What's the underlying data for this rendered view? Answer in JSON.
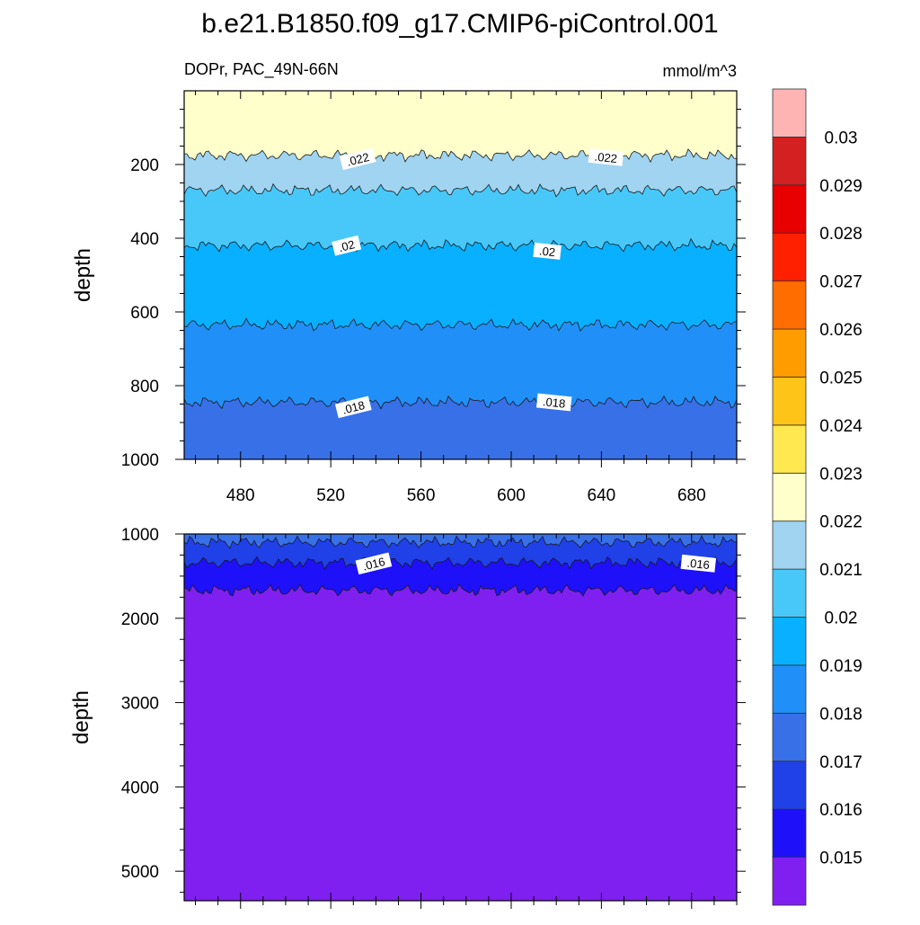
{
  "chart_data": {
    "type": "contour",
    "title": "b.e21.B1850.f09_g17.CMIP6-piControl.001",
    "left_subtitle": "DOPr, PAC_49N-66N",
    "right_subtitle": "mmol/m^3",
    "ylabel": "depth",
    "x_ticks": [
      480,
      520,
      560,
      600,
      640,
      680
    ],
    "xlim": [
      455,
      700
    ],
    "panels": [
      {
        "name": "upper",
        "ylim": [
          0,
          1000
        ],
        "y_reversed": true,
        "y_ticks": [
          200,
          400,
          600,
          800,
          1000
        ],
        "contour_depths": [
          {
            "level": 0.022,
            "depth": 175
          },
          {
            "level": 0.021,
            "depth": 270
          },
          {
            "level": 0.02,
            "depth": 420
          },
          {
            "level": 0.019,
            "depth": 635
          },
          {
            "level": 0.018,
            "depth": 845
          }
        ],
        "contour_labels": [
          {
            "text": ".022",
            "x": 532,
            "depth": 185
          },
          {
            "text": ".022",
            "x": 642,
            "depth": 180
          },
          {
            "text": ".02",
            "x": 527,
            "depth": 420
          },
          {
            "text": ".02",
            "x": 616,
            "depth": 435
          },
          {
            "text": ".018",
            "x": 530,
            "depth": 858
          },
          {
            "text": ".018",
            "x": 619,
            "depth": 845
          }
        ]
      },
      {
        "name": "lower",
        "ylim": [
          1000,
          5350
        ],
        "y_reversed": true,
        "y_ticks": [
          1000,
          2000,
          3000,
          4000,
          5000
        ],
        "contour_depths": [
          {
            "level": 0.017,
            "depth": 1100
          },
          {
            "level": 0.016,
            "depth": 1340
          },
          {
            "level": 0.015,
            "depth": 1670
          }
        ],
        "contour_labels": [
          {
            "text": ".016",
            "x": 539,
            "depth": 1350
          },
          {
            "text": ".016",
            "x": 683,
            "depth": 1350
          }
        ]
      }
    ],
    "colorbar": {
      "colors": [
        "#8020f0",
        "#1e10f8",
        "#2040e8",
        "#3870e8",
        "#2090f8",
        "#08b0ff",
        "#48c8f8",
        "#a0d4f0",
        "#ffffcc",
        "#ffe850",
        "#ffc418",
        "#ff9c00",
        "#ff6c00",
        "#ff2000",
        "#e80000",
        "#d42020",
        "#ffb4b4"
      ],
      "labels": [
        "0.015",
        "0.016",
        "0.017",
        "0.018",
        "0.019",
        "0.02",
        "0.021",
        "0.022",
        "0.023",
        "0.024",
        "0.025",
        "0.026",
        "0.027",
        "0.028",
        "0.029",
        "0.03"
      ]
    }
  }
}
